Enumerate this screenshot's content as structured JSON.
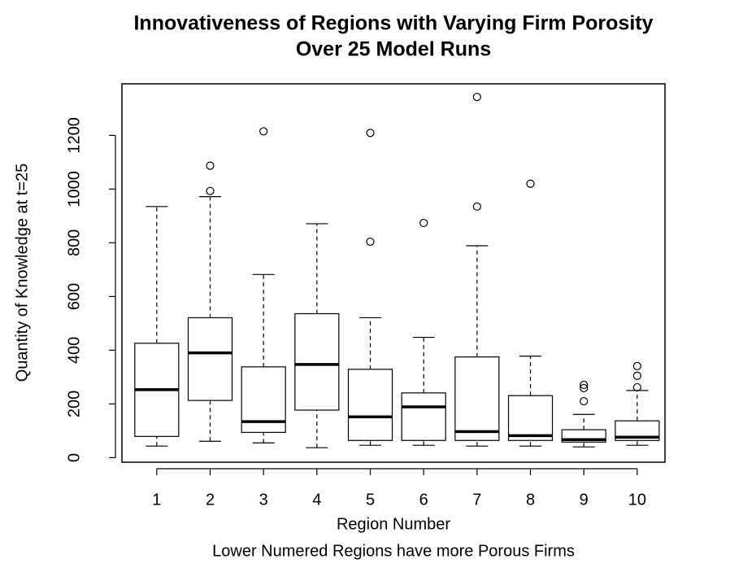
{
  "chart_data": {
    "type": "box",
    "title": [
      "Innovativeness of Regions with Varying Firm Porosity",
      "Over 25 Model Runs"
    ],
    "x_label": "Region Number",
    "subtitle": "Lower Numered Regions have more Porous Firms",
    "y_label": "Quantity of Knowledge at t=25",
    "categories": [
      "1",
      "2",
      "3",
      "4",
      "5",
      "6",
      "7",
      "8",
      "9",
      "10"
    ],
    "boxes": [
      {
        "whislo": 43,
        "q1": 79,
        "median": 253,
        "q3": 426,
        "whishi": 935,
        "outliers": []
      },
      {
        "whislo": 61,
        "q1": 213,
        "median": 390,
        "q3": 521,
        "whishi": 972,
        "outliers": [
          993,
          1087
        ]
      },
      {
        "whislo": 55,
        "q1": 94,
        "median": 134,
        "q3": 338,
        "whishi": 682,
        "outliers": [
          1215
        ]
      },
      {
        "whislo": 37,
        "q1": 177,
        "median": 347,
        "q3": 536,
        "whishi": 871,
        "outliers": []
      },
      {
        "whislo": 46,
        "q1": 64,
        "median": 152,
        "q3": 329,
        "whishi": 521,
        "outliers": [
          804,
          1209
        ]
      },
      {
        "whislo": 46,
        "q1": 64,
        "median": 189,
        "q3": 241,
        "whishi": 448,
        "outliers": [
          874
        ]
      },
      {
        "whislo": 43,
        "q1": 64,
        "median": 97,
        "q3": 375,
        "whishi": 789,
        "outliers": [
          935,
          1343
        ]
      },
      {
        "whislo": 43,
        "q1": 64,
        "median": 82,
        "q3": 231,
        "whishi": 378,
        "outliers": [
          1020
        ]
      },
      {
        "whislo": 40,
        "q1": 58,
        "median": 67,
        "q3": 104,
        "whishi": 161,
        "outliers": [
          210,
          259,
          271
        ]
      },
      {
        "whislo": 46,
        "q1": 64,
        "median": 76,
        "q3": 137,
        "whishi": 250,
        "outliers": [
          262,
          305,
          341
        ]
      }
    ],
    "color": "#000000",
    "ylim": [
      -17,
      1392
    ],
    "yticks": [
      0,
      200,
      400,
      600,
      800,
      1000,
      1200
    ],
    "grid": false
  }
}
